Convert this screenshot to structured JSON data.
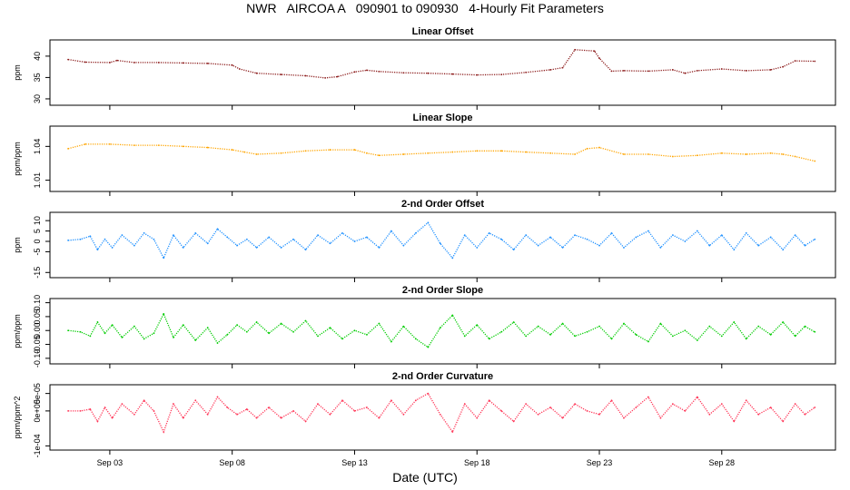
{
  "figure": {
    "title": "NWR   AIRCOA A   090901 to 090930   4-Hourly Fit Parameters",
    "xlabel": "Date (UTC)",
    "x_tick_labels": [
      "Sep 03",
      "Sep 08",
      "Sep 13",
      "Sep 18",
      "Sep 23",
      "Sep 28"
    ]
  },
  "chart_data": [
    {
      "type": "line",
      "title": "Linear Offset",
      "ylabel": "ppm",
      "color": "#8b1a1a",
      "ylim": [
        28.5,
        43.8
      ],
      "y_ticks": [
        30,
        35,
        40
      ],
      "y_tick_labels": [
        "30",
        "35",
        "40"
      ],
      "xlim_days": [
        0.0,
        31.2
      ],
      "x_ticks_days": [
        2,
        7,
        12,
        17,
        22,
        27
      ],
      "x_tick_labels": [
        "Sep 03",
        "Sep 08",
        "Sep 13",
        "Sep 18",
        "Sep 23",
        "Sep 28"
      ],
      "x_days": [
        0.3,
        1.0,
        2.0,
        2.3,
        3.0,
        4.0,
        5.0,
        6.0,
        7.0,
        7.3,
        8.0,
        9.0,
        10.0,
        10.8,
        11.3,
        12.0,
        12.5,
        13.0,
        14.0,
        15.0,
        16.0,
        17.0,
        18.0,
        19.0,
        20.0,
        20.5,
        21.0,
        21.8,
        22.0,
        22.5,
        23.0,
        24.0,
        25.0,
        25.5,
        26.0,
        27.0,
        28.0,
        29.0,
        29.5,
        30.0,
        30.8
      ],
      "values": [
        39.2,
        38.6,
        38.5,
        39.0,
        38.5,
        38.5,
        38.4,
        38.3,
        37.9,
        37.0,
        36.0,
        35.7,
        35.4,
        34.9,
        35.2,
        36.3,
        36.7,
        36.4,
        36.1,
        36.0,
        35.8,
        35.6,
        35.7,
        36.2,
        36.8,
        37.3,
        41.5,
        41.2,
        39.5,
        36.5,
        36.6,
        36.5,
        36.8,
        36.0,
        36.6,
        37.0,
        36.6,
        36.8,
        37.5,
        38.9,
        38.8
      ]
    },
    {
      "type": "line",
      "title": "Linear Slope",
      "ylabel": "ppm/ppm",
      "color": "#ffa500",
      "ylim": [
        1.0,
        1.058
      ],
      "y_ticks": [
        1.01,
        1.04
      ],
      "y_tick_labels": [
        "1.01",
        "1.04"
      ],
      "xlim_days": [
        0.0,
        31.2
      ],
      "x_ticks_days": [
        2,
        7,
        12,
        17,
        22,
        27
      ],
      "x_tick_labels": [
        "Sep 03",
        "Sep 08",
        "Sep 13",
        "Sep 18",
        "Sep 23",
        "Sep 28"
      ],
      "x_days": [
        0.3,
        1.0,
        2.0,
        3.0,
        4.0,
        5.0,
        6.0,
        7.0,
        7.5,
        8.0,
        9.0,
        10.0,
        11.0,
        12.0,
        12.5,
        13.0,
        14.0,
        15.0,
        16.0,
        17.0,
        18.0,
        19.0,
        20.0,
        21.0,
        21.5,
        22.0,
        23.0,
        24.0,
        25.0,
        26.0,
        27.0,
        28.0,
        29.0,
        29.5,
        30.0,
        30.8
      ],
      "values": [
        1.038,
        1.042,
        1.042,
        1.041,
        1.041,
        1.04,
        1.039,
        1.037,
        1.035,
        1.033,
        1.034,
        1.036,
        1.037,
        1.037,
        1.034,
        1.032,
        1.033,
        1.034,
        1.035,
        1.036,
        1.036,
        1.035,
        1.034,
        1.033,
        1.038,
        1.039,
        1.033,
        1.033,
        1.031,
        1.032,
        1.034,
        1.033,
        1.034,
        1.033,
        1.031,
        1.027
      ]
    },
    {
      "type": "line",
      "title": "2-nd Order Offset",
      "ylabel": "ppm",
      "color": "#1e90ff",
      "ylim": [
        -17.5,
        14.0
      ],
      "y_ticks": [
        -15,
        -5,
        0,
        5,
        10
      ],
      "y_tick_labels": [
        "-15",
        "-5",
        "0",
        "5",
        "10"
      ],
      "xlim_days": [
        0.0,
        31.2
      ],
      "x_ticks_days": [
        2,
        7,
        12,
        17,
        22,
        27
      ],
      "x_tick_labels": [
        "Sep 03",
        "Sep 08",
        "Sep 13",
        "Sep 18",
        "Sep 23",
        "Sep 28"
      ],
      "x_days": [
        0.3,
        0.8,
        1.2,
        1.5,
        1.8,
        2.1,
        2.5,
        3.0,
        3.4,
        3.8,
        4.2,
        4.6,
        5.0,
        5.5,
        6.0,
        6.4,
        6.8,
        7.2,
        7.6,
        8.0,
        8.5,
        9.0,
        9.5,
        10.0,
        10.5,
        11.0,
        11.5,
        12.0,
        12.5,
        13.0,
        13.5,
        14.0,
        14.5,
        15.0,
        15.5,
        16.0,
        16.5,
        17.0,
        17.5,
        18.0,
        18.5,
        19.0,
        19.5,
        20.0,
        20.5,
        21.0,
        21.5,
        22.0,
        22.5,
        23.0,
        23.5,
        24.0,
        24.5,
        25.0,
        25.5,
        26.0,
        26.5,
        27.0,
        27.5,
        28.0,
        28.5,
        29.0,
        29.5,
        30.0,
        30.4,
        30.8
      ],
      "values": [
        0.5,
        1.0,
        2.5,
        -4.0,
        1.0,
        -3.0,
        3.0,
        -2.0,
        4.0,
        1.0,
        -8.0,
        3.0,
        -3.0,
        4.0,
        -1.0,
        6.0,
        2.0,
        -2.0,
        1.0,
        -3.0,
        2.0,
        -3.0,
        1.0,
        -4.0,
        3.0,
        -1.0,
        4.0,
        0.0,
        2.0,
        -3.0,
        5.0,
        -2.0,
        4.0,
        9.0,
        -1.0,
        -8.0,
        3.0,
        -3.0,
        4.0,
        1.0,
        -4.0,
        3.0,
        -2.0,
        2.0,
        -3.0,
        3.0,
        1.0,
        -2.0,
        4.0,
        -3.0,
        2.0,
        5.0,
        -3.0,
        3.0,
        0.0,
        5.0,
        -2.0,
        3.0,
        -4.0,
        4.0,
        -2.0,
        2.0,
        -4.0,
        3.0,
        -2.0,
        1.0
      ]
    },
    {
      "type": "line",
      "title": "2-nd Order Slope",
      "ylabel": "ppm/ppm",
      "color": "#00cc00",
      "ylim": [
        -0.12,
        0.115
      ],
      "y_ticks": [
        -0.1,
        -0.05,
        0.0,
        0.05,
        0.1
      ],
      "y_tick_labels": [
        "-0.10",
        "-0.05",
        "0.00",
        "0.05",
        "0.10"
      ],
      "xlim_days": [
        0.0,
        31.2
      ],
      "x_ticks_days": [
        2,
        7,
        12,
        17,
        22,
        27
      ],
      "x_tick_labels": [
        "Sep 03",
        "Sep 08",
        "Sep 13",
        "Sep 18",
        "Sep 23",
        "Sep 28"
      ],
      "x_days": [
        0.3,
        0.8,
        1.2,
        1.5,
        1.8,
        2.1,
        2.5,
        3.0,
        3.4,
        3.8,
        4.2,
        4.6,
        5.0,
        5.5,
        6.0,
        6.4,
        6.8,
        7.2,
        7.6,
        8.0,
        8.5,
        9.0,
        9.5,
        10.0,
        10.5,
        11.0,
        11.5,
        12.0,
        12.5,
        13.0,
        13.5,
        14.0,
        14.5,
        15.0,
        15.5,
        16.0,
        16.5,
        17.0,
        17.5,
        18.0,
        18.5,
        19.0,
        19.5,
        20.0,
        20.5,
        21.0,
        21.5,
        22.0,
        22.5,
        23.0,
        23.5,
        24.0,
        24.5,
        25.0,
        25.5,
        26.0,
        26.5,
        27.0,
        27.5,
        28.0,
        28.5,
        29.0,
        29.5,
        30.0,
        30.4,
        30.8
      ],
      "values": [
        0.0,
        -0.005,
        -0.02,
        0.03,
        -0.01,
        0.02,
        -0.025,
        0.015,
        -0.03,
        -0.01,
        0.06,
        -0.025,
        0.02,
        -0.035,
        0.01,
        -0.045,
        -0.015,
        0.02,
        -0.005,
        0.03,
        -0.01,
        0.025,
        -0.005,
        0.035,
        -0.02,
        0.01,
        -0.03,
        0.0,
        -0.015,
        0.025,
        -0.04,
        0.015,
        -0.03,
        -0.06,
        0.01,
        0.055,
        -0.02,
        0.02,
        -0.03,
        -0.005,
        0.03,
        -0.02,
        0.015,
        -0.015,
        0.025,
        -0.02,
        -0.005,
        0.015,
        -0.03,
        0.025,
        -0.015,
        -0.04,
        0.025,
        -0.02,
        0.0,
        -0.035,
        0.015,
        -0.02,
        0.03,
        -0.03,
        0.015,
        -0.015,
        0.03,
        -0.02,
        0.015,
        -0.005
      ]
    },
    {
      "type": "line",
      "title": "2-nd Order Curvature",
      "ylabel": "ppm/ppm^2",
      "color": "#ff3355",
      "ylim": [
        -0.000112,
        7.5e-05
      ],
      "y_ticks": [
        -0.0001,
        0.0,
        5e-05
      ],
      "y_tick_labels": [
        "-1e-04",
        "0e+00",
        "5e-05"
      ],
      "xlim_days": [
        0.0,
        31.2
      ],
      "x_ticks_days": [
        2,
        7,
        12,
        17,
        22,
        27
      ],
      "x_tick_labels": [
        "Sep 03",
        "Sep 08",
        "Sep 13",
        "Sep 18",
        "Sep 23",
        "Sep 28"
      ],
      "x_days": [
        0.3,
        0.8,
        1.2,
        1.5,
        1.8,
        2.1,
        2.5,
        3.0,
        3.4,
        3.8,
        4.2,
        4.6,
        5.0,
        5.5,
        6.0,
        6.4,
        6.8,
        7.2,
        7.6,
        8.0,
        8.5,
        9.0,
        9.5,
        10.0,
        10.5,
        11.0,
        11.5,
        12.0,
        12.5,
        13.0,
        13.5,
        14.0,
        14.5,
        15.0,
        15.5,
        16.0,
        16.5,
        17.0,
        17.5,
        18.0,
        18.5,
        19.0,
        19.5,
        20.0,
        20.5,
        21.0,
        21.5,
        22.0,
        22.5,
        23.0,
        23.5,
        24.0,
        24.5,
        25.0,
        25.5,
        26.0,
        26.5,
        27.0,
        27.5,
        28.0,
        28.5,
        29.0,
        29.5,
        30.0,
        30.4,
        30.8
      ],
      "values": [
        0.0,
        0.0,
        5e-06,
        -3e-05,
        1e-05,
        -2e-05,
        2e-05,
        -1e-05,
        3e-05,
        0.0,
        -6e-05,
        2e-05,
        -2e-05,
        3e-05,
        -1e-05,
        4e-05,
        1e-05,
        -1e-05,
        5e-06,
        -2e-05,
        1e-05,
        -2e-05,
        0.0,
        -3e-05,
        2e-05,
        -1e-05,
        3e-05,
        0.0,
        1e-05,
        -2e-05,
        3e-05,
        -1e-05,
        3e-05,
        5e-05,
        -1e-05,
        -6e-05,
        2e-05,
        -2e-05,
        3e-05,
        0.0,
        -3e-05,
        2e-05,
        -1e-05,
        1e-05,
        -2e-05,
        2e-05,
        0.0,
        -1e-05,
        3e-05,
        -2e-05,
        1e-05,
        4e-05,
        -2e-05,
        2e-05,
        0.0,
        4e-05,
        -1e-05,
        2e-05,
        -3e-05,
        3e-05,
        -1e-05,
        1e-05,
        -3e-05,
        2e-05,
        -1e-05,
        1e-05
      ]
    }
  ]
}
